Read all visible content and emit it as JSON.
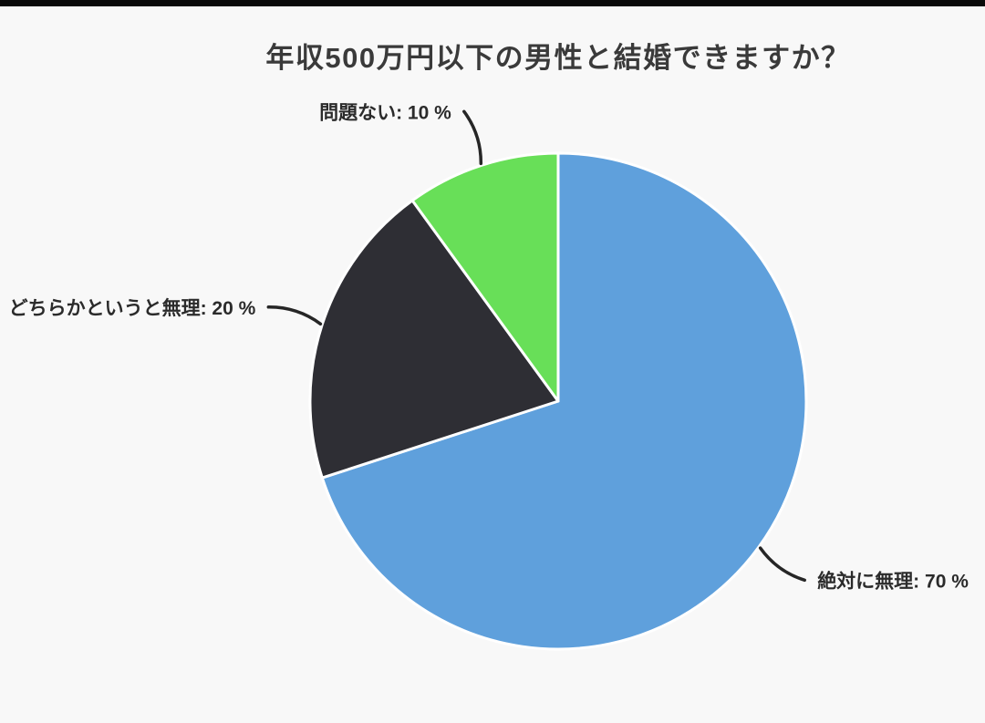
{
  "page": {
    "background_color": "#f8f8f8",
    "top_bar_color": "#0a0a0a"
  },
  "chart_data": {
    "type": "pie",
    "title": "年収500万円以下の男性と結婚できますか？",
    "title_color": "#3a3a3a",
    "label_color": "#2b2b2b",
    "separator_color": "#ffffff",
    "leader_line_color": "#262626",
    "start_angle_deg": 0,
    "direction": "clockwise",
    "legend": "none",
    "value_suffix": " %",
    "slices": [
      {
        "label": "絶対に無理",
        "value": 70,
        "display": "絶対に無理: 70 %",
        "color": "#5fa0dc"
      },
      {
        "label": "どちらかというと無理",
        "value": 20,
        "display": "どちらかというと無理: 20 %",
        "color": "#2e2e34"
      },
      {
        "label": "問題ない",
        "value": 10,
        "display": "問題ない: 10 %",
        "color": "#68df58"
      }
    ]
  }
}
